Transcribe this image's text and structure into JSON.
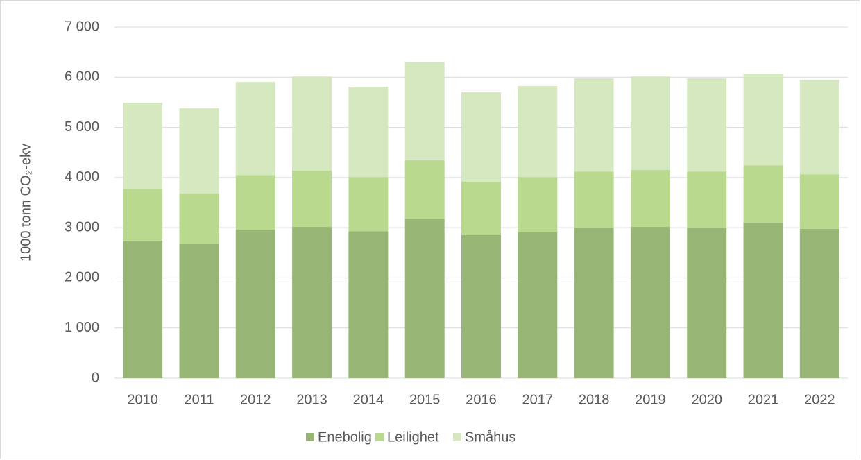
{
  "chart_data": {
    "type": "stacked_bar",
    "y_label": "1000 tonn CO₂-ekv",
    "categories": [
      "2010",
      "2011",
      "2012",
      "2013",
      "2014",
      "2015",
      "2016",
      "2017",
      "2018",
      "2019",
      "2020",
      "2021",
      "2022"
    ],
    "series": [
      {
        "name": "Enebolig",
        "color": "#97b574",
        "values": [
          2740,
          2670,
          2960,
          3015,
          2930,
          3170,
          2850,
          2905,
          3000,
          3015,
          3000,
          3100,
          2975
        ]
      },
      {
        "name": "Leilighet",
        "color": "#b8d98e",
        "values": [
          1035,
          1010,
          1090,
          1120,
          1080,
          1175,
          1065,
          1105,
          1120,
          1135,
          1120,
          1145,
          1090
        ]
      },
      {
        "name": "Småhus",
        "color": "#d5e8c0",
        "values": [
          1715,
          1700,
          1855,
          1880,
          1800,
          1960,
          1785,
          1815,
          1855,
          1865,
          1855,
          1825,
          1880
        ]
      }
    ],
    "ylim": [
      0,
      7000
    ],
    "yticks": [
      0,
      {
        "value": 1000,
        "label": "1 000"
      },
      {
        "value": 2000,
        "label": "2 000"
      },
      {
        "value": 3000,
        "label": "3 000"
      },
      {
        "value": 4000,
        "label": "4 000"
      },
      {
        "value": 5000,
        "label": "5 000"
      },
      {
        "value": 6000,
        "label": "6 000"
      },
      {
        "value": 7000,
        "label": "7 000"
      }
    ],
    "grid": true,
    "legend": "bottom"
  }
}
